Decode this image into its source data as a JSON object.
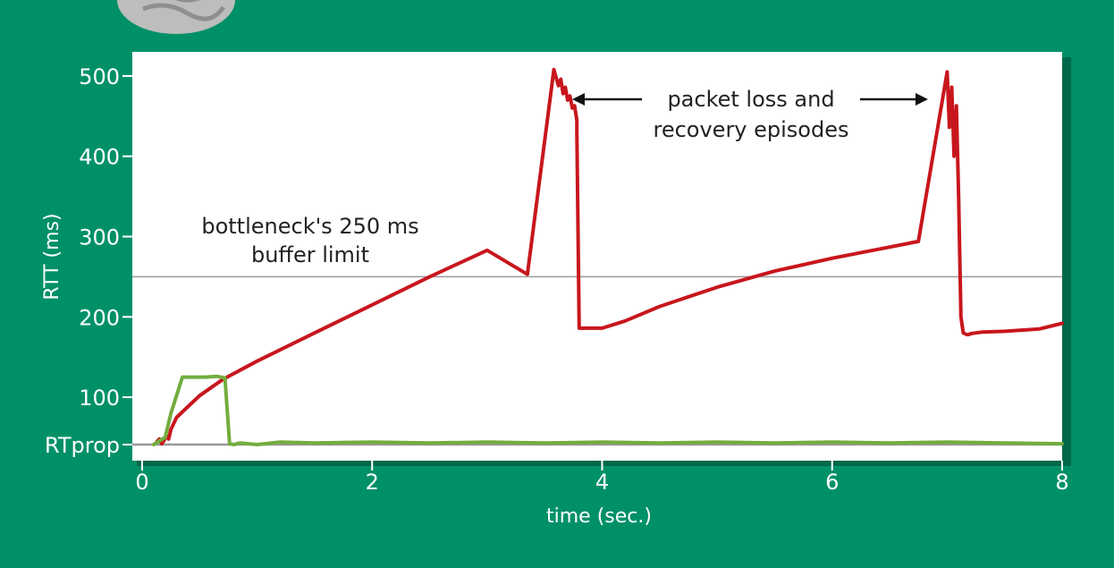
{
  "chart_data": {
    "type": "line",
    "title": "",
    "xlabel": "time (sec.)",
    "ylabel": "RTT (ms)",
    "xlim": [
      0,
      8
    ],
    "ylim": [
      21,
      530
    ],
    "x_ticks": [
      {
        "value": 0,
        "label": "0"
      },
      {
        "value": 2,
        "label": "2"
      },
      {
        "value": 4,
        "label": "4"
      },
      {
        "value": 6,
        "label": "6"
      },
      {
        "value": 8,
        "label": "8"
      }
    ],
    "y_ticks": [
      {
        "value": 500,
        "label": "500"
      },
      {
        "value": 400,
        "label": "400"
      },
      {
        "value": 300,
        "label": "300"
      },
      {
        "value": 200,
        "label": "200"
      },
      {
        "value": 100,
        "label": "100"
      },
      {
        "value": 41,
        "label": "RTprop"
      }
    ],
    "reference_lines": [
      {
        "value": 250,
        "label": "bottleneck's 250 ms buffer limit",
        "color": "#9a9a9a"
      },
      {
        "value": 41,
        "label": "RTprop",
        "color": "#999999"
      }
    ],
    "annotations": [
      {
        "text": "packet loss and recovery episodes",
        "lines": [
          "packet loss and",
          "recovery episodes"
        ],
        "color": "#222222"
      }
    ],
    "series": [
      {
        "color": "#c8161d",
        "x": [
          0.13,
          0.15,
          0.17,
          0.19,
          0.21,
          0.23,
          0.25,
          0.3,
          0.5,
          0.7,
          1.0,
          1.5,
          2.0,
          2.5,
          3.0,
          3.35,
          3.58,
          3.6,
          3.62,
          3.64,
          3.66,
          3.68,
          3.7,
          3.72,
          3.74,
          3.76,
          3.78,
          3.78,
          3.8,
          3.85,
          4.0,
          4.2,
          4.5,
          5.0,
          5.5,
          6.0,
          6.5,
          6.75,
          7.0,
          7.02,
          7.04,
          7.06,
          7.08,
          7.1,
          7.12,
          7.14,
          7.17,
          7.19,
          7.2,
          7.25,
          7.3,
          7.5,
          7.8,
          8.0
        ],
        "y": [
          45,
          48,
          42,
          46,
          52,
          48,
          60,
          75,
          102,
          122,
          145,
          180,
          215,
          250,
          283,
          253,
          508,
          498,
          488,
          496,
          478,
          486,
          470,
          475,
          460,
          463,
          445,
          432,
          186,
          186,
          186,
          195,
          213,
          237,
          257,
          273,
          287,
          294,
          505,
          436,
          486,
          400,
          463,
          350,
          200,
          180,
          178,
          178,
          179,
          180,
          181,
          182,
          185,
          192
        ]
      },
      {
        "color": "#72ad3e",
        "x": [
          0.1,
          0.2,
          0.25,
          0.35,
          0.45,
          0.55,
          0.65,
          0.72,
          0.76,
          0.8,
          0.85,
          1.0,
          1.2,
          1.5,
          2.0,
          2.5,
          3.0,
          3.5,
          4.0,
          4.5,
          5.0,
          5.5,
          6.0,
          6.5,
          7.0,
          7.5,
          8.0
        ],
        "y": [
          41,
          50,
          80,
          125,
          125,
          125,
          126,
          124,
          42,
          41,
          43,
          41,
          44,
          43,
          44,
          43,
          44,
          43,
          44,
          43,
          44,
          43,
          44,
          43,
          44,
          43,
          42
        ]
      }
    ]
  }
}
